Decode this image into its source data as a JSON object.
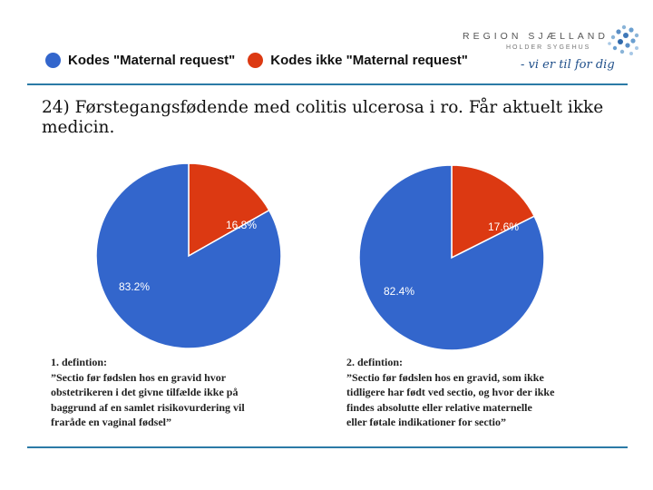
{
  "legend": {
    "items": [
      {
        "label": "Kodes \"Maternal request\"",
        "color": "#3366cc"
      },
      {
        "label": "Kodes ikke \"Maternal request\"",
        "color": "#dc3912"
      }
    ]
  },
  "logo": {
    "name": "REGION SJÆLLAND",
    "subtitle": "HOLDER SYGEHUS",
    "tagline": "- vi er til for dig"
  },
  "title": "24) Førstegangsfødende med colitis ulcerosa i ro. Får aktuelt ikke medicin.",
  "chart_data": [
    {
      "type": "pie",
      "slices": [
        {
          "name": "Kodes \"Maternal request\"",
          "value": 83.2,
          "label": "83.2%",
          "color": "#3366cc"
        },
        {
          "name": "Kodes ikke \"Maternal request\"",
          "value": 16.8,
          "label": "16.8%",
          "color": "#dc3912"
        }
      ],
      "caption": [
        "1. defintion:",
        "”Sectio før fødslen hos en gravid hvor",
        "obstetrikeren i det givne tilfælde ikke på",
        "baggrund af en samlet risikovurdering vil",
        "fraråde en vaginal fødsel”"
      ]
    },
    {
      "type": "pie",
      "slices": [
        {
          "name": "Kodes \"Maternal request\"",
          "value": 82.4,
          "label": "82.4%",
          "color": "#3366cc"
        },
        {
          "name": "Kodes ikke \"Maternal request\"",
          "value": 17.6,
          "label": "17.6%",
          "color": "#dc3912"
        }
      ],
      "caption": [
        "2. defintion:",
        "”Sectio før fødslen hos en gravid, som ikke",
        "tidligere har født ved sectio, og hvor der ikke",
        "findes absolutte eller relative maternelle",
        "eller føtale indikationer for sectio”"
      ]
    }
  ]
}
